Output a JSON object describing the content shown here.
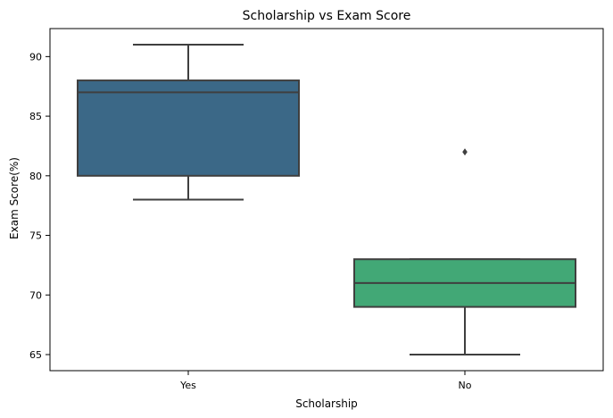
{
  "chart_data": {
    "type": "box",
    "title": "Scholarship vs Exam Score",
    "xlabel": "Scholarship",
    "ylabel": "Exam Score(%)",
    "categories": [
      "Yes",
      "No"
    ],
    "ylim": [
      63.65,
      92.35
    ],
    "yticks": [
      65,
      70,
      75,
      80,
      85,
      90
    ],
    "boxes": [
      {
        "category": "Yes",
        "whisker_low": 78,
        "q1": 80,
        "median": 87,
        "q3": 88,
        "whisker_high": 91,
        "outliers": [],
        "color": "#3b6887"
      },
      {
        "category": "No",
        "whisker_low": 65,
        "q1": 69,
        "median": 71,
        "q3": 73,
        "whisker_high": 73,
        "outliers": [
          82
        ],
        "color": "#42a876"
      }
    ],
    "line_color": "#3f3f3f",
    "grid": false,
    "legend": "none"
  }
}
